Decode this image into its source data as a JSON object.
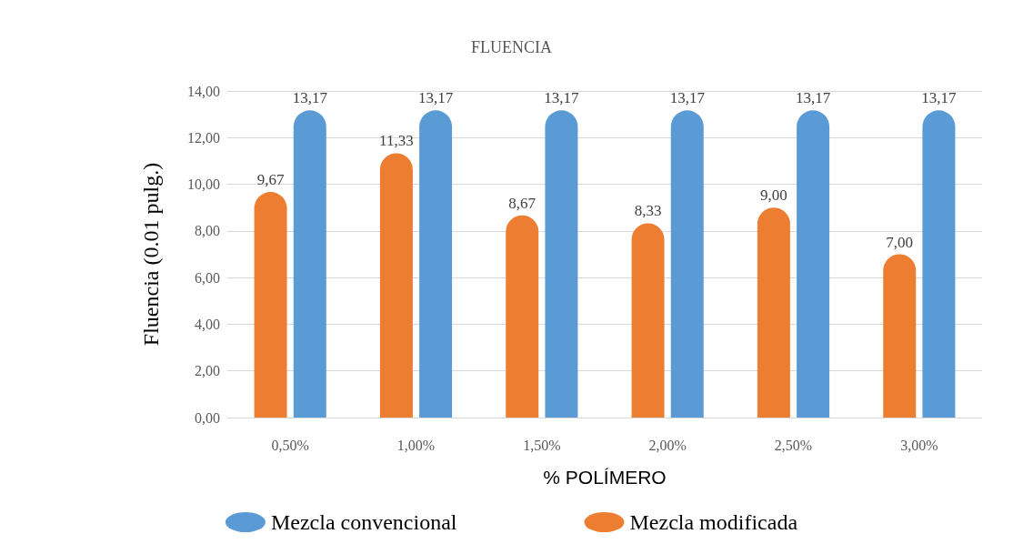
{
  "chart_data": {
    "type": "bar",
    "title": "FLUENCIA",
    "xlabel": "% POLÍMERO",
    "ylabel": "Fluencia (0.01 pulg.)",
    "categories": [
      "0,50%",
      "1,00%",
      "1,50%",
      "2,00%",
      "2,50%",
      "3,00%"
    ],
    "series": [
      {
        "name": "Mezcla modificada",
        "color": "#ed7d31",
        "values": [
          9.67,
          11.33,
          8.67,
          8.33,
          9.0,
          7.0
        ],
        "value_labels": [
          "9,67",
          "11,33",
          "8,67",
          "8,33",
          "9,00",
          "7,00"
        ]
      },
      {
        "name": "Mezcla convencional",
        "color": "#5b9bd5",
        "values": [
          13.17,
          13.17,
          13.17,
          13.17,
          13.17,
          13.17
        ],
        "value_labels": [
          "13,17",
          "13,17",
          "13,17",
          "13,17",
          "13,17",
          "13,17"
        ]
      }
    ],
    "ylim": [
      0,
      14
    ],
    "yticks": [
      {
        "value": 0,
        "label": "0,00"
      },
      {
        "value": 2,
        "label": "2,00"
      },
      {
        "value": 4,
        "label": "4,00"
      },
      {
        "value": 6,
        "label": "6,00"
      },
      {
        "value": 8,
        "label": "8,00"
      },
      {
        "value": 10,
        "label": "10,00"
      },
      {
        "value": 12,
        "label": "12,00"
      },
      {
        "value": 14,
        "label": "14,00"
      }
    ],
    "grid": "y",
    "legend": "bottom"
  }
}
